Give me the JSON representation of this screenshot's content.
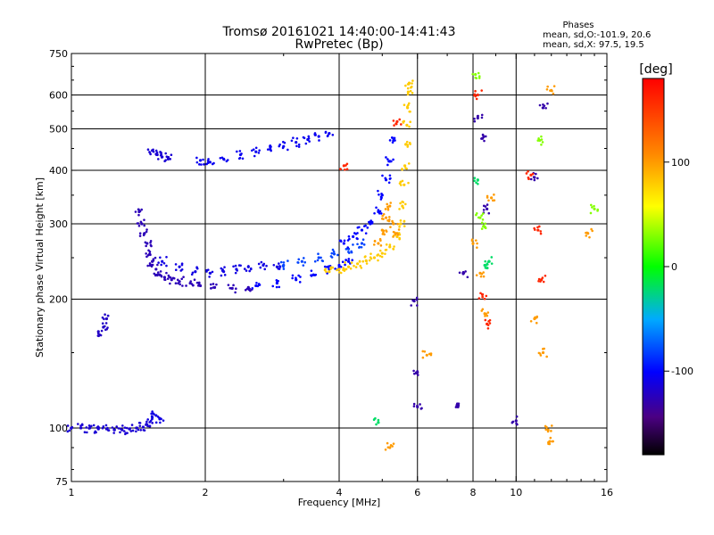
{
  "header": {
    "title_line1": "Tromsø 20161021 14:40:00-14:41:43",
    "title_line2": "RwPretec (Bp)",
    "phases_label": "Phases",
    "phases_o": "mean, sd,O:-101.9, 20.6",
    "phases_x": "mean, sd,X:  97.5, 19.5"
  },
  "chart_data": {
    "type": "scatter",
    "title": "Tromsø 20161021 14:40:00-14:41:43",
    "subtitle": "RwPretec (Bp)",
    "xlabel": "Frequency [MHz]",
    "ylabel": "Stationary phase Virtual Height [km]",
    "x_scale": "log",
    "y_scale": "log",
    "xlim": [
      1,
      16
    ],
    "ylim": [
      75,
      750
    ],
    "x_ticks": [
      1,
      2,
      4,
      6,
      8,
      10,
      16
    ],
    "x_tick_labels": [
      "1",
      "2",
      "4",
      "6",
      "8",
      "10",
      "16"
    ],
    "y_ticks": [
      75,
      100,
      200,
      300,
      400,
      500,
      600,
      750
    ],
    "y_tick_labels": [
      "75",
      "100",
      "200",
      "300",
      "400",
      "500",
      "600",
      "750"
    ],
    "grid_x": [
      2,
      4,
      6,
      8,
      10
    ],
    "grid_y": [
      100,
      200,
      300,
      400,
      500,
      600
    ],
    "colorbar": {
      "label": "[deg]",
      "range": [
        -180,
        180
      ],
      "ticks": [
        -100,
        0,
        100
      ],
      "tick_labels": [
        "-100",
        "0",
        "100"
      ]
    },
    "series": [
      {
        "phase": -115,
        "points": [
          [
            1.0,
            100
          ],
          [
            1.05,
            100
          ],
          [
            1.1,
            100
          ],
          [
            1.15,
            99.5
          ],
          [
            1.2,
            99.5
          ],
          [
            1.25,
            99
          ],
          [
            1.3,
            99
          ],
          [
            1.35,
            99.5
          ],
          [
            1.4,
            100
          ],
          [
            1.45,
            100.5
          ],
          [
            1.5,
            101
          ]
        ]
      },
      {
        "phase": -110,
        "points": [
          [
            1.52,
            106
          ],
          [
            1.55,
            107
          ],
          [
            1.58,
            105
          ]
        ]
      },
      {
        "phase": -120,
        "points": [
          [
            1.15,
            168
          ],
          [
            1.18,
            172
          ],
          [
            1.2,
            180
          ]
        ]
      },
      {
        "phase": -115,
        "points": [
          [
            1.52,
            445
          ],
          [
            1.56,
            435
          ],
          [
            1.6,
            430
          ],
          [
            1.65,
            425
          ]
        ]
      },
      {
        "phase": -105,
        "points": [
          [
            1.95,
            422
          ],
          [
            2.05,
            418
          ],
          [
            2.2,
            425
          ],
          [
            2.4,
            435
          ],
          [
            2.6,
            442
          ],
          [
            2.8,
            448
          ],
          [
            3.0,
            455
          ],
          [
            3.2,
            465
          ],
          [
            3.4,
            472
          ],
          [
            3.6,
            480
          ],
          [
            3.8,
            488
          ]
        ]
      },
      {
        "phase": -125,
        "points": [
          [
            1.42,
            320
          ],
          [
            1.44,
            300
          ],
          [
            1.46,
            285
          ],
          [
            1.48,
            270
          ],
          [
            1.5,
            255
          ],
          [
            1.52,
            245
          ],
          [
            1.55,
            235
          ],
          [
            1.58,
            228
          ],
          [
            1.62,
            225
          ],
          [
            1.68,
            222
          ],
          [
            1.75,
            220
          ],
          [
            1.85,
            218
          ],
          [
            1.95,
            215
          ],
          [
            2.1,
            213
          ],
          [
            2.3,
            212
          ],
          [
            2.5,
            213
          ]
        ]
      },
      {
        "phase": -110,
        "points": [
          [
            1.6,
            245
          ],
          [
            1.75,
            238
          ],
          [
            1.9,
            232
          ],
          [
            2.05,
            230
          ],
          [
            2.2,
            232
          ],
          [
            2.35,
            235
          ],
          [
            2.5,
            238
          ],
          [
            2.7,
            240
          ],
          [
            2.9,
            238
          ]
        ]
      },
      {
        "phase": -100,
        "points": [
          [
            2.6,
            215
          ],
          [
            2.9,
            218
          ],
          [
            3.2,
            222
          ],
          [
            3.5,
            228
          ],
          [
            3.8,
            235
          ],
          [
            4.0,
            240
          ],
          [
            4.2,
            245
          ]
        ]
      },
      {
        "phase": -80,
        "points": [
          [
            3.0,
            240
          ],
          [
            3.3,
            245
          ],
          [
            3.6,
            250
          ],
          [
            3.9,
            255
          ],
          [
            4.2,
            262
          ],
          [
            4.5,
            270
          ]
        ]
      },
      {
        "phase": 80,
        "points": [
          [
            3.8,
            232
          ],
          [
            4.0,
            235
          ],
          [
            4.2,
            238
          ],
          [
            4.4,
            242
          ],
          [
            4.6,
            246
          ],
          [
            4.8,
            250
          ],
          [
            5.0,
            256
          ],
          [
            5.2,
            265
          ],
          [
            5.4,
            280
          ],
          [
            5.5,
            300
          ],
          [
            5.55,
            330
          ],
          [
            5.6,
            370
          ],
          [
            5.62,
            410
          ],
          [
            5.65,
            460
          ],
          [
            5.68,
            510
          ],
          [
            5.7,
            560
          ],
          [
            5.72,
            610
          ],
          [
            5.75,
            640
          ]
        ]
      },
      {
        "phase": 100,
        "points": [
          [
            4.9,
            270
          ],
          [
            5.0,
            290
          ],
          [
            5.1,
            310
          ],
          [
            5.2,
            330
          ],
          [
            5.3,
            300
          ],
          [
            5.4,
            285
          ]
        ]
      },
      {
        "phase": -100,
        "points": [
          [
            4.1,
            270
          ],
          [
            4.3,
            280
          ],
          [
            4.5,
            290
          ],
          [
            4.7,
            300
          ],
          [
            4.9,
            320
          ],
          [
            5.0,
            350
          ],
          [
            5.1,
            380
          ],
          [
            5.2,
            420
          ],
          [
            5.3,
            470
          ]
        ]
      },
      {
        "phase": -130,
        "points": [
          [
            5.9,
            198
          ],
          [
            6.0,
            135
          ],
          [
            6.0,
            112
          ],
          [
            7.4,
            112
          ],
          [
            7.6,
            230
          ],
          [
            8.2,
            530
          ],
          [
            8.4,
            475
          ],
          [
            8.6,
            325
          ],
          [
            10.0,
            104
          ],
          [
            11.0,
            385
          ],
          [
            11.5,
            560
          ]
        ]
      },
      {
        "phase": 100,
        "points": [
          [
            5.2,
            90
          ],
          [
            6.3,
            148
          ],
          [
            8.0,
            270
          ],
          [
            8.3,
            230
          ],
          [
            8.5,
            185
          ],
          [
            8.8,
            345
          ],
          [
            11.0,
            180
          ],
          [
            11.5,
            150
          ],
          [
            11.8,
            99
          ],
          [
            11.9,
            93
          ],
          [
            12.0,
            615
          ],
          [
            14.5,
            285
          ]
        ]
      },
      {
        "phase": 160,
        "points": [
          [
            4.1,
            410
          ],
          [
            5.4,
            520
          ],
          [
            8.2,
            600
          ],
          [
            8.4,
            205
          ],
          [
            8.6,
            175
          ],
          [
            10.8,
            390
          ],
          [
            11.2,
            290
          ],
          [
            11.4,
            222
          ]
        ]
      },
      {
        "phase": 30,
        "points": [
          [
            8.1,
            670
          ],
          [
            8.3,
            310
          ],
          [
            8.5,
            295
          ],
          [
            11.3,
            470
          ],
          [
            15.0,
            325
          ]
        ]
      },
      {
        "phase": -20,
        "points": [
          [
            4.9,
            103
          ],
          [
            8.2,
            380
          ],
          [
            8.5,
            240
          ],
          [
            8.7,
            245
          ]
        ]
      }
    ]
  }
}
